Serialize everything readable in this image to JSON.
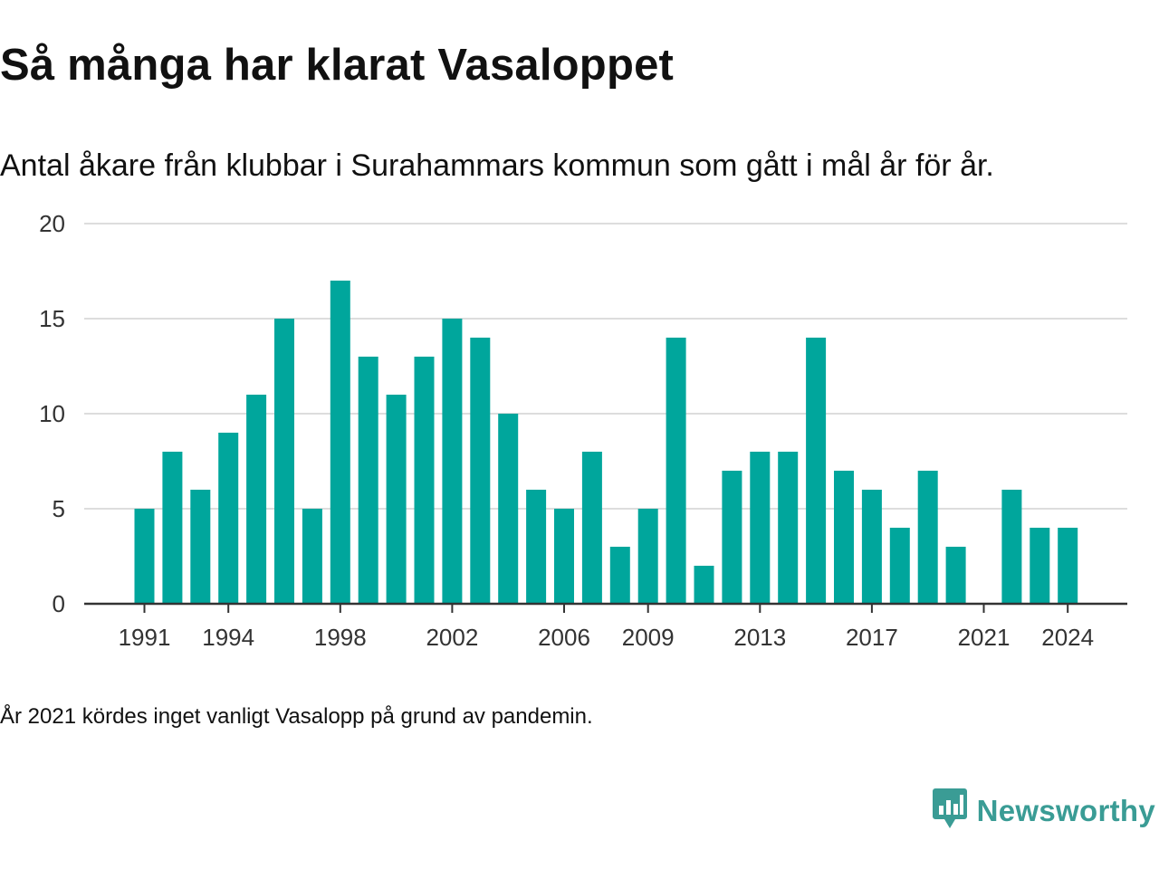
{
  "header": {
    "title": "Så många har klarat Vasaloppet",
    "subtitle": "Antal åkare från klubbar i Surahammars kommun som gått i mål år för år."
  },
  "footnote": "År 2021 kördes inget vanligt Vasalopp på grund av pandemin.",
  "brand": {
    "name": "Newsworthy",
    "icon": "newsworthy-logo-icon",
    "color": "#3a9c95"
  },
  "colors": {
    "bar": "#00a69c",
    "grid": "#dddddd",
    "axis": "#333333"
  },
  "chart_data": {
    "type": "bar",
    "title": "Så många har klarat Vasaloppet",
    "subtitle": "Antal åkare från klubbar i Surahammars kommun som gått i mål år för år.",
    "xlabel": "",
    "ylabel": "",
    "ylim": [
      0,
      20
    ],
    "yticks": [
      0,
      5,
      10,
      15,
      20
    ],
    "xticks": [
      1991,
      1994,
      1998,
      2002,
      2006,
      2009,
      2013,
      2017,
      2021,
      2024
    ],
    "grid": true,
    "legend": "none",
    "categories": [
      1991,
      1992,
      1993,
      1994,
      1995,
      1996,
      1997,
      1998,
      1999,
      2000,
      2001,
      2002,
      2003,
      2004,
      2005,
      2006,
      2007,
      2008,
      2009,
      2010,
      2011,
      2012,
      2013,
      2014,
      2015,
      2016,
      2017,
      2018,
      2019,
      2020,
      2021,
      2022,
      2023,
      2024
    ],
    "values": [
      5,
      8,
      6,
      9,
      11,
      15,
      5,
      17,
      13,
      11,
      13,
      15,
      14,
      10,
      6,
      5,
      8,
      3,
      5,
      14,
      2,
      7,
      8,
      8,
      14,
      7,
      6,
      4,
      7,
      3,
      0,
      6,
      4,
      4
    ]
  }
}
